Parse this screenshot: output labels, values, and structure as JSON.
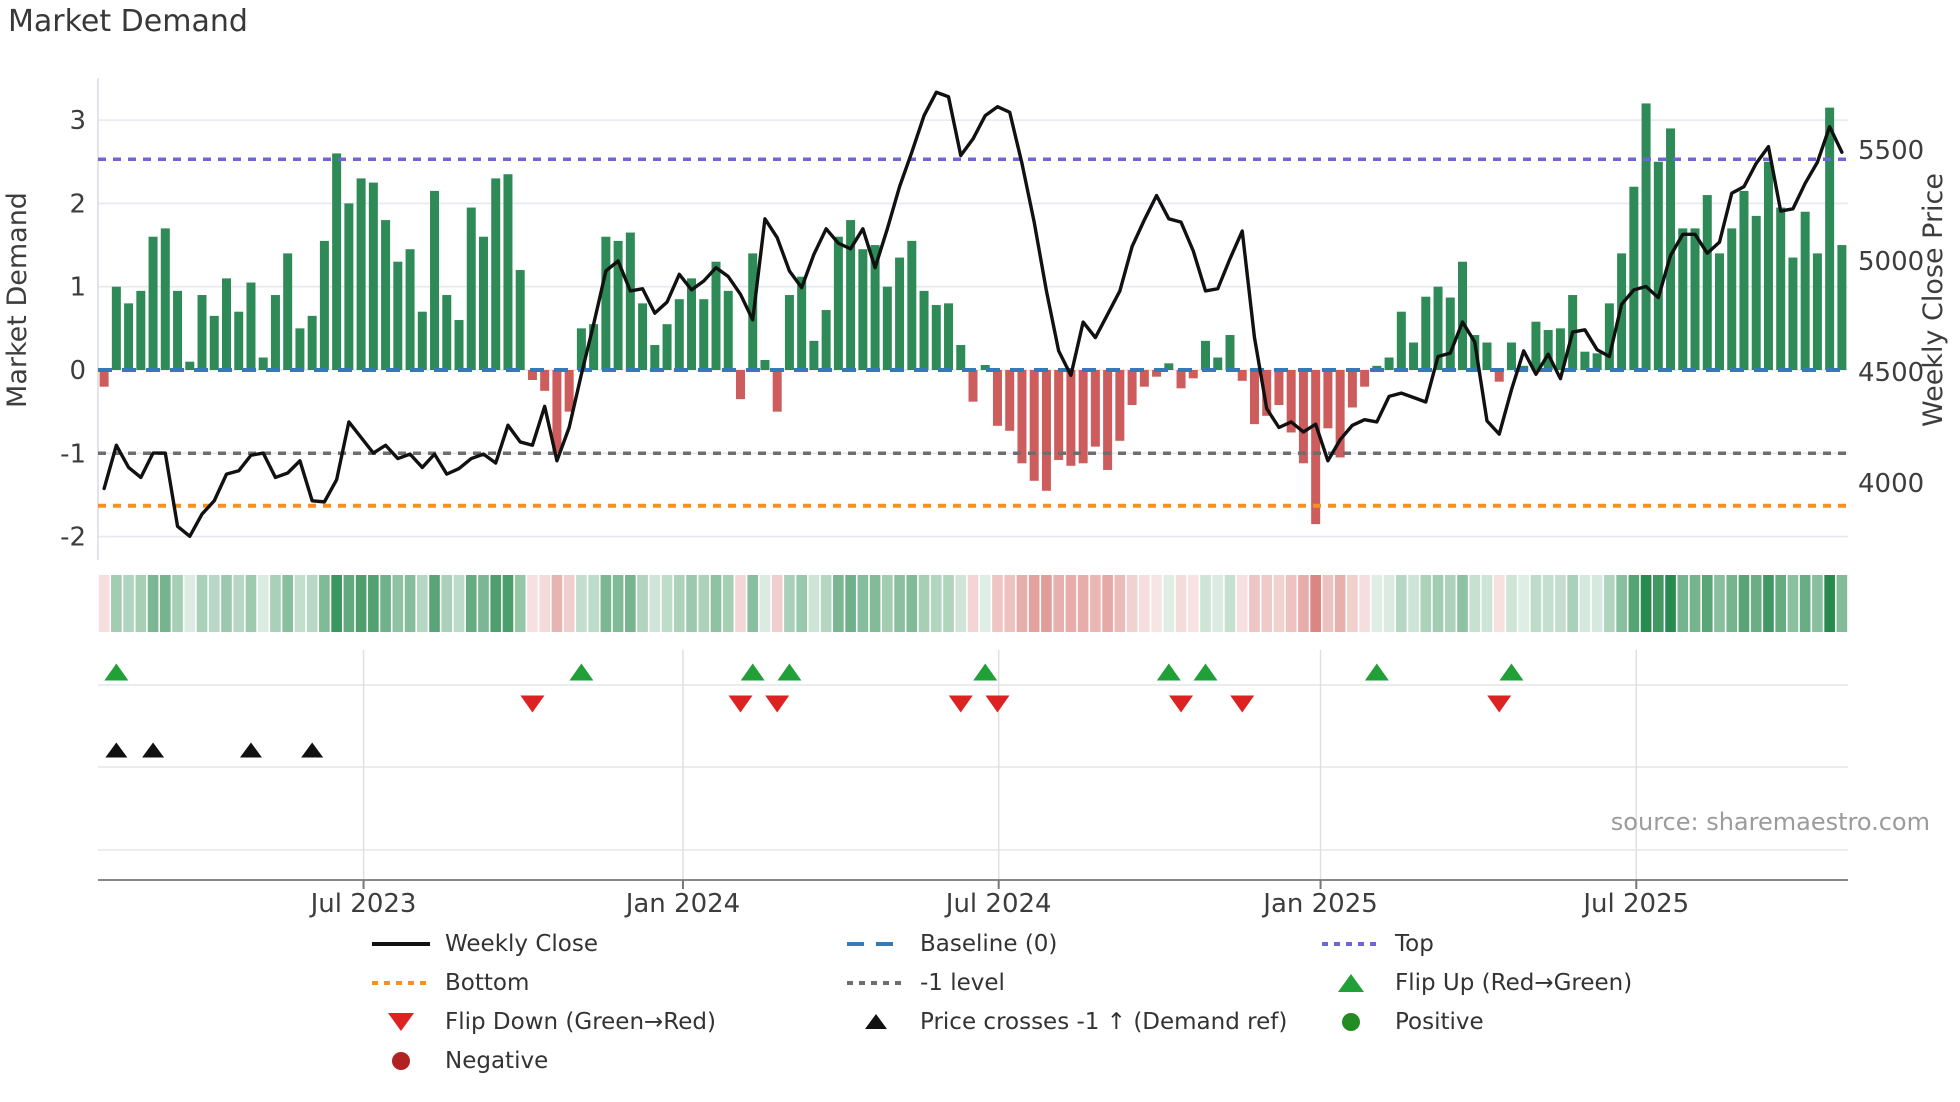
{
  "title": "Market Demand",
  "source_text": "source: sharemaestro.com",
  "axes": {
    "left_label": "Market Demand",
    "right_label": "Weekly Close Price",
    "left_ticks": [
      "3",
      "2",
      "1",
      "0",
      "-1",
      "-2"
    ],
    "left_tick_values": [
      3,
      2,
      1,
      0,
      -1,
      -2
    ],
    "right_ticks": [
      "5500",
      "5000",
      "4500",
      "4000"
    ],
    "right_tick_values": [
      5500,
      5000,
      4500,
      4000
    ],
    "x_ticks": [
      "Jul 2023",
      "Jan 2024",
      "Jul 2024",
      "Jan 2025",
      "Jul 2025"
    ],
    "x_tick_weeks": [
      21.2,
      47.3,
      73.1,
      99.4,
      125.2
    ]
  },
  "legend": {
    "weekly_close": "Weekly Close",
    "baseline": "Baseline (0)",
    "top": "Top",
    "bottom": "Bottom",
    "minus_one": "-1 level",
    "flip_up": "Flip Up (Red→Green)",
    "flip_down": "Flip Down (Green→Red)",
    "price_cross": "Price crosses -1 ↑ (Demand ref)",
    "positive": "Positive",
    "negative": "Negative"
  },
  "colors": {
    "bar_green": "#2e8b57",
    "bar_red": "#cd5c5c",
    "price_line": "#111111",
    "baseline": "#3579b8",
    "top_line": "#6f66d6",
    "bottom_line": "#f59123",
    "minus_one_line": "#6e6e6e",
    "flip_up": "#21a038",
    "flip_down": "#dd2222",
    "cross": "#111111",
    "grid": "#e8e8f0",
    "tick_text": "#3d3d3d",
    "source": "#9b9b9b",
    "heat_green_rgb": "40,138,78",
    "heat_red_rgb": "202,80,74"
  },
  "chart_data": {
    "type": "bar+line",
    "title": "Market Demand",
    "ylabel_left": "Market Demand",
    "ylabel_right": "Weekly Close Price",
    "ylim_demand": [
      -2.3,
      3.5
    ],
    "ylim_price_ticks": [
      4000,
      5500
    ],
    "n_weeks": 143,
    "reference_lines": {
      "baseline": 0,
      "top": 2.53,
      "bottom": -1.63,
      "minus_one": -1
    },
    "demand": [
      -0.2,
      1.0,
      0.8,
      0.95,
      1.6,
      1.7,
      0.95,
      0.1,
      0.9,
      0.65,
      1.1,
      0.7,
      1.05,
      0.15,
      0.9,
      1.4,
      0.5,
      0.65,
      1.55,
      2.6,
      2.0,
      2.3,
      2.25,
      1.8,
      1.3,
      1.45,
      0.7,
      2.15,
      0.9,
      0.6,
      1.95,
      1.6,
      2.3,
      2.35,
      1.2,
      -0.12,
      -0.25,
      -1.0,
      -0.5,
      0.5,
      0.55,
      1.6,
      1.55,
      1.65,
      0.8,
      0.3,
      0.55,
      0.85,
      1.1,
      0.85,
      1.3,
      0.95,
      -0.35,
      1.4,
      0.12,
      -0.5,
      0.9,
      1.12,
      0.35,
      0.72,
      1.6,
      1.8,
      1.45,
      1.5,
      1.0,
      1.35,
      1.55,
      0.95,
      0.78,
      0.8,
      0.3,
      -0.38,
      0.06,
      -0.67,
      -0.73,
      -1.12,
      -1.33,
      -1.45,
      -1.08,
      -1.15,
      -1.12,
      -0.92,
      -1.2,
      -0.85,
      -0.42,
      -0.2,
      -0.08,
      0.08,
      -0.22,
      -0.1,
      0.35,
      0.15,
      0.42,
      -0.13,
      -0.65,
      -0.55,
      -0.42,
      -0.75,
      -1.12,
      -1.85,
      -0.7,
      -1.05,
      -0.45,
      -0.2,
      0.05,
      0.15,
      0.7,
      0.33,
      0.88,
      1.0,
      0.87,
      1.3,
      0.42,
      0.33,
      -0.14,
      0.33,
      0.05,
      0.58,
      0.48,
      0.5,
      0.9,
      0.22,
      0.2,
      0.8,
      1.4,
      2.2,
      3.2,
      2.5,
      2.9,
      1.7,
      1.7,
      2.1,
      1.4,
      1.7,
      2.15,
      1.85,
      2.5,
      1.95,
      1.35,
      1.9,
      1.4,
      3.15,
      1.5
    ],
    "price": [
      3975,
      4170,
      4070,
      4025,
      4135,
      4135,
      3805,
      3760,
      3860,
      3920,
      4040,
      4055,
      4125,
      4135,
      4025,
      4045,
      4100,
      3920,
      3915,
      4015,
      4275,
      4205,
      4135,
      4170,
      4110,
      4130,
      4070,
      4130,
      4040,
      4065,
      4110,
      4130,
      4090,
      4260,
      4185,
      4170,
      4345,
      4100,
      4250,
      4490,
      4715,
      4955,
      5000,
      4865,
      4875,
      4765,
      4815,
      4940,
      4870,
      4910,
      4970,
      4930,
      4850,
      4735,
      5190,
      5105,
      4955,
      4880,
      5030,
      5145,
      5080,
      5055,
      5145,
      4970,
      5145,
      5335,
      5490,
      5655,
      5760,
      5740,
      5475,
      5550,
      5655,
      5695,
      5670,
      5440,
      5175,
      4865,
      4595,
      4485,
      4725,
      4655,
      4760,
      4865,
      5065,
      5185,
      5295,
      5190,
      5175,
      5045,
      4865,
      4875,
      5010,
      5135,
      4655,
      4335,
      4250,
      4275,
      4230,
      4265,
      4100,
      4195,
      4260,
      4285,
      4275,
      4390,
      4405,
      4385,
      4365,
      4570,
      4585,
      4725,
      4635,
      4280,
      4220,
      4420,
      4595,
      4490,
      4580,
      4470,
      4680,
      4690,
      4600,
      4570,
      4805,
      4870,
      4885,
      4835,
      5025,
      5120,
      5120,
      5035,
      5085,
      5305,
      5335,
      5440,
      5515,
      5225,
      5235,
      5350,
      5445,
      5605,
      5490
    ],
    "markers": {
      "flip_up_weeks": [
        1,
        39,
        53,
        56,
        72,
        87,
        90,
        104,
        115
      ],
      "flip_down_weeks": [
        35,
        52,
        55,
        70,
        73,
        88,
        93,
        114
      ],
      "price_cross_weeks": [
        1,
        4,
        12,
        17
      ]
    },
    "legend_entries": [
      "Weekly Close",
      "Baseline (0)",
      "Top",
      "Bottom",
      "-1 level",
      "Flip Up (Red→Green)",
      "Flip Down (Green→Red)",
      "Price crosses -1 ↑ (Demand ref)",
      "Positive",
      "Negative"
    ],
    "grid": true,
    "legend_position": "bottom"
  }
}
